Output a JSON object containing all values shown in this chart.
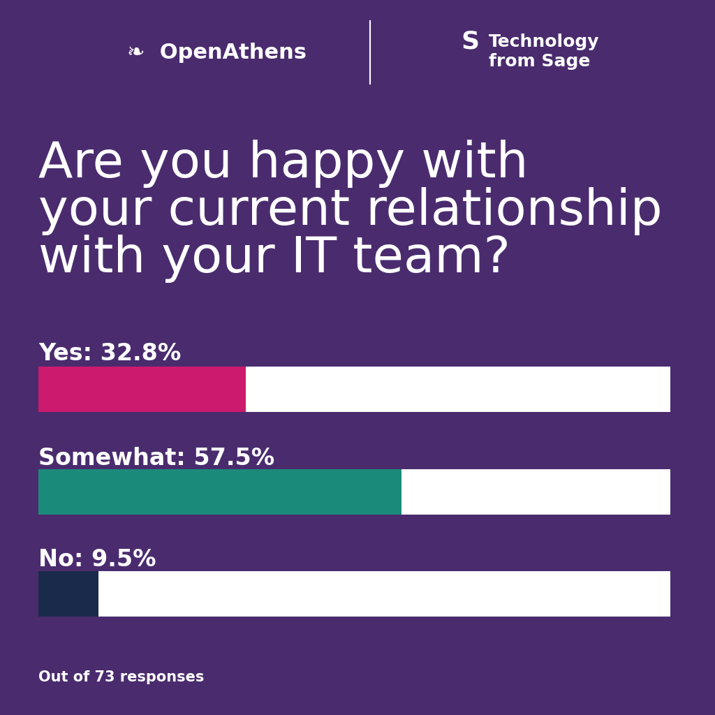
{
  "background_color": "#4a2c6e",
  "question_line1": "Are you happy with",
  "question_line2": "your current relationship",
  "question_line3": "with your IT team?",
  "question_fontsize": 52,
  "question_color": "#ffffff",
  "bars": [
    {
      "label": "Yes: 32.8%",
      "value": 32.8,
      "color": "#cc1a6e"
    },
    {
      "label": "Somewhat: 57.5%",
      "value": 57.5,
      "color": "#1a8a7a"
    },
    {
      "label": "No: 9.5%",
      "value": 9.5,
      "color": "#1a2a4a"
    }
  ],
  "bar_bg_color": "#ffffff",
  "label_fontsize": 24,
  "label_color": "#ffffff",
  "footer": "Out of 73 responses",
  "footer_fontsize": 15,
  "footer_color": "#ffffff",
  "logo_color": "#ffffff",
  "separator_color": "#ffffff",
  "openathens_fontsize": 22,
  "sage_fontsize": 18
}
